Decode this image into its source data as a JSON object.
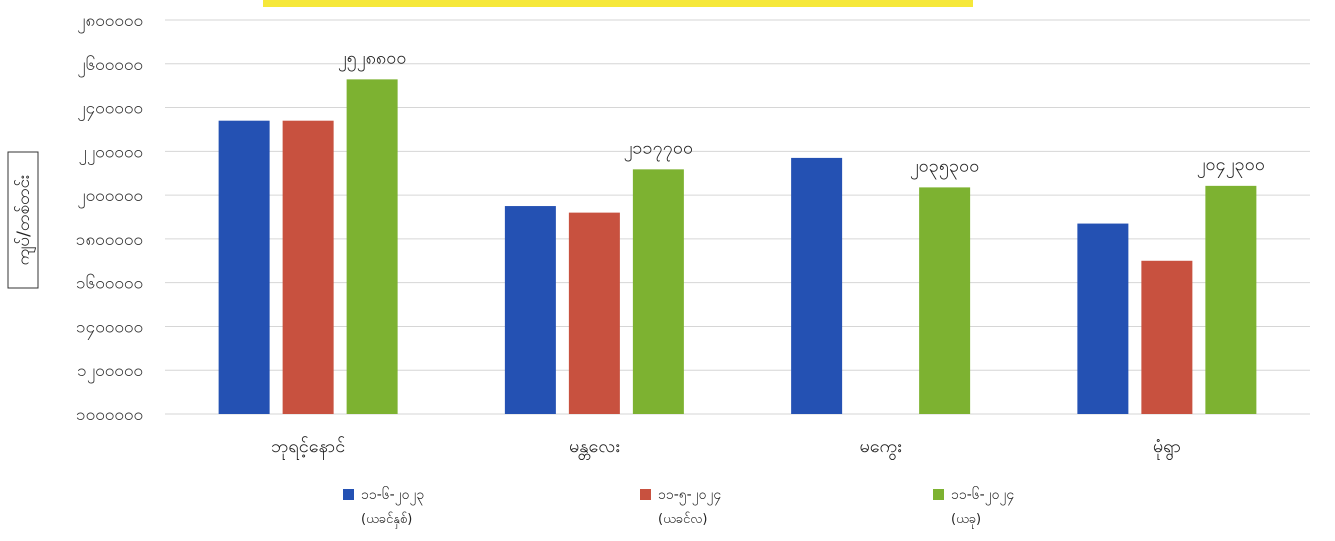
{
  "chart_data": {
    "type": "bar",
    "ylabel": "ကျပ်/တစ်တင်း",
    "ylim": [
      1000000,
      2800000
    ],
    "yticks": [
      1000000,
      1200000,
      1400000,
      1600000,
      1800000,
      2000000,
      2200000,
      2400000,
      2600000,
      2800000
    ],
    "ytick_labels": [
      "၁၀၀၀၀၀၀",
      "၁၂၀၀၀၀၀",
      "၁၄၀၀၀၀၀",
      "၁၆၀၀၀၀၀",
      "၁၈၀၀၀၀၀",
      "၂၀၀၀၀၀၀",
      "၂၂၀၀၀၀၀",
      "၂၄၀၀၀၀၀",
      "၂၆၀၀၀၀၀",
      "၂၈၀၀၀၀၀"
    ],
    "categories": [
      "ဘုရင့်နောင်",
      "မန္တလေး",
      "မကွေး",
      "မုံရွာ"
    ],
    "grid": true,
    "legend_position": "bottom",
    "series": [
      {
        "name": "၁၁-၆-၂၀၂၃",
        "sub": "(ယခင်နှစ်)",
        "color": "#2451B3",
        "values": [
          2340000,
          1950000,
          2170000,
          1870000
        ]
      },
      {
        "name": "၁၁-၅-၂၀၂၄",
        "sub": "(ယခင်လ)",
        "color": "#C8513F",
        "values": [
          2340000,
          1920000,
          null,
          1700000
        ]
      },
      {
        "name": "၁၁-၆-၂၀၂၄",
        "sub": "(ယခု)",
        "color": "#7DB231",
        "values": [
          2528800,
          2117700,
          2035300,
          2042300
        ]
      }
    ],
    "data_labels": [
      {
        "series": 2,
        "index": 0,
        "text": "၂၅၂၈၈၀၀"
      },
      {
        "series": 2,
        "index": 1,
        "text": "၂၁၁၇၇၀၀"
      },
      {
        "series": 2,
        "index": 2,
        "text": "၂၀၃၅၃၀၀"
      },
      {
        "series": 2,
        "index": 3,
        "text": "၂၀၄၂၃၀၀"
      }
    ]
  },
  "colors": {
    "highlight_banner": "#F6E83A",
    "grid": "#D6D6D6"
  }
}
